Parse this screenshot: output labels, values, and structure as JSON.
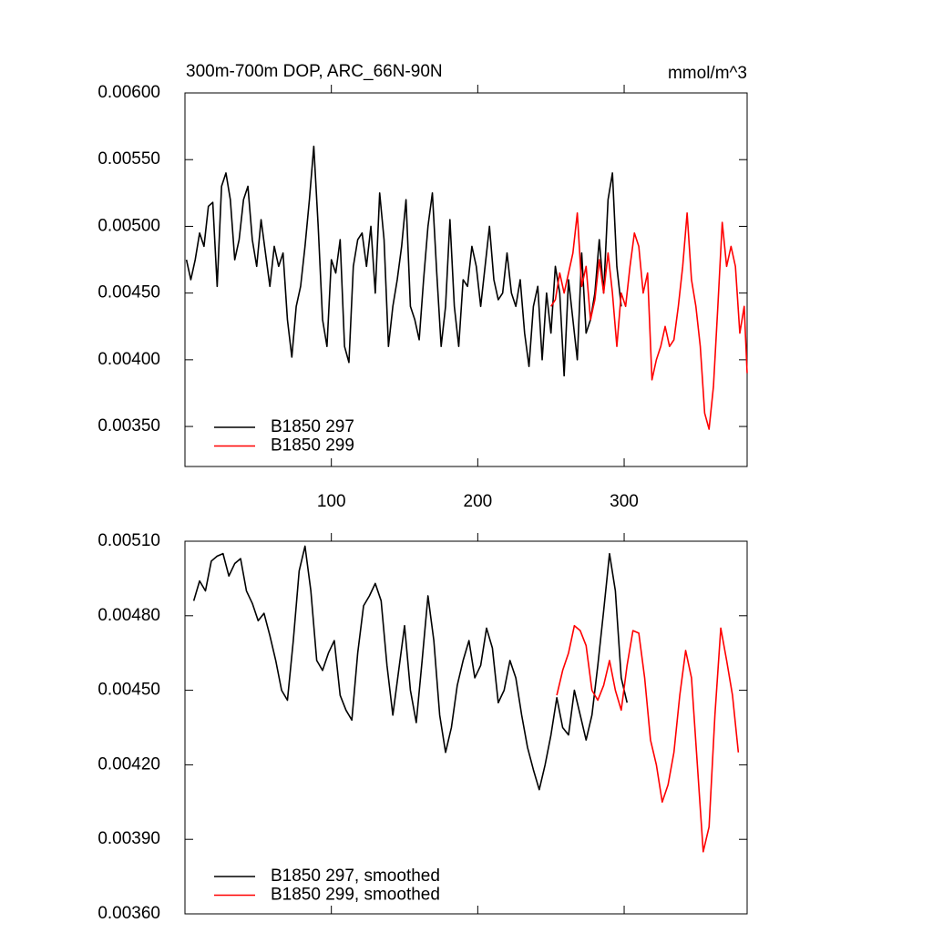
{
  "chart_data": [
    {
      "type": "line",
      "title": "300m-700m DOP, ARC_66N-90N",
      "units": "mmol/m^3",
      "xlim": [
        0,
        384
      ],
      "xticks": [
        100,
        200,
        300
      ],
      "show_xtick_labels": true,
      "ylim": [
        0.0032,
        0.006
      ],
      "yticks": [
        {
          "value": 0.0035,
          "label": "0.00350"
        },
        {
          "value": 0.004,
          "label": "0.00400"
        },
        {
          "value": 0.0045,
          "label": "0.00450"
        },
        {
          "value": 0.005,
          "label": "0.00500"
        },
        {
          "value": 0.0055,
          "label": "0.00550"
        },
        {
          "value": 0.006,
          "label": "0.00600"
        }
      ],
      "legend": "lower left",
      "series": [
        {
          "name": "B1850 297",
          "color": "#000000",
          "x": [
            1,
            4,
            7,
            10,
            13,
            16,
            19,
            22,
            25,
            28,
            31,
            34,
            37,
            40,
            43,
            46,
            49,
            52,
            55,
            58,
            61,
            64,
            67,
            70,
            73,
            76,
            79,
            82,
            85,
            88,
            91,
            94,
            97,
            100,
            103,
            106,
            109,
            112,
            115,
            118,
            121,
            124,
            127,
            130,
            133,
            136,
            139,
            142,
            145,
            148,
            151,
            154,
            157,
            160,
            163,
            166,
            169,
            172,
            175,
            178,
            181,
            184,
            187,
            190,
            193,
            196,
            199,
            202,
            205,
            208,
            211,
            214,
            217,
            220,
            223,
            226,
            229,
            232,
            235,
            238,
            241,
            244,
            247,
            250,
            253,
            256,
            259,
            262,
            265,
            268,
            271,
            274,
            277,
            280,
            283,
            286,
            289,
            292,
            295,
            298
          ],
          "values": [
            0.00475,
            0.0046,
            0.00475,
            0.00495,
            0.00485,
            0.00515,
            0.00518,
            0.00455,
            0.0053,
            0.0054,
            0.0052,
            0.00475,
            0.0049,
            0.0052,
            0.0053,
            0.0049,
            0.0047,
            0.00505,
            0.0048,
            0.00455,
            0.00485,
            0.0047,
            0.0048,
            0.0043,
            0.00402,
            0.0044,
            0.00455,
            0.00485,
            0.0052,
            0.0056,
            0.005,
            0.0043,
            0.0041,
            0.00475,
            0.00465,
            0.0049,
            0.0041,
            0.00398,
            0.0047,
            0.0049,
            0.00495,
            0.0047,
            0.005,
            0.0045,
            0.00525,
            0.0049,
            0.0041,
            0.0044,
            0.0046,
            0.00485,
            0.0052,
            0.0044,
            0.0043,
            0.00415,
            0.0046,
            0.005,
            0.00525,
            0.00465,
            0.0041,
            0.0044,
            0.00505,
            0.0044,
            0.0041,
            0.0046,
            0.00455,
            0.00485,
            0.0047,
            0.0044,
            0.0047,
            0.005,
            0.0046,
            0.00445,
            0.0045,
            0.0048,
            0.0045,
            0.0044,
            0.0046,
            0.0042,
            0.00395,
            0.0044,
            0.00455,
            0.004,
            0.0045,
            0.0042,
            0.0047,
            0.0045,
            0.00388,
            0.0046,
            0.0043,
            0.004,
            0.0048,
            0.0042,
            0.0043,
            0.0045,
            0.0049,
            0.0045,
            0.0052,
            0.0054,
            0.0047,
            0.0044
          ]
        },
        {
          "name": "B1850 299",
          "color": "#ff0000",
          "x": [
            250,
            253,
            256,
            259,
            262,
            265,
            268,
            271,
            274,
            277,
            280,
            283,
            286,
            289,
            292,
            295,
            298,
            301,
            304,
            307,
            310,
            313,
            316,
            319,
            322,
            325,
            328,
            331,
            334,
            337,
            340,
            343,
            346,
            349,
            352,
            355,
            358,
            361,
            364,
            367,
            370,
            373,
            376,
            379,
            382,
            384
          ],
          "values": [
            0.0044,
            0.00445,
            0.00465,
            0.0045,
            0.00465,
            0.0048,
            0.0051,
            0.00455,
            0.0047,
            0.0043,
            0.00445,
            0.00475,
            0.0045,
            0.0048,
            0.0045,
            0.0041,
            0.0045,
            0.0044,
            0.0047,
            0.00495,
            0.00485,
            0.0045,
            0.00465,
            0.00385,
            0.004,
            0.0041,
            0.00425,
            0.0041,
            0.00415,
            0.0044,
            0.0047,
            0.0051,
            0.0046,
            0.0044,
            0.0041,
            0.0036,
            0.00348,
            0.0038,
            0.0044,
            0.00503,
            0.0047,
            0.00485,
            0.0047,
            0.0042,
            0.0044,
            0.0039
          ]
        }
      ]
    },
    {
      "type": "line",
      "xlim": [
        0,
        384
      ],
      "xticks": [
        100,
        200,
        300
      ],
      "show_xtick_labels": false,
      "ylim": [
        0.0036,
        0.0051
      ],
      "yticks": [
        {
          "value": 0.0036,
          "label": "0.00360"
        },
        {
          "value": 0.0039,
          "label": "0.00390"
        },
        {
          "value": 0.0042,
          "label": "0.00420"
        },
        {
          "value": 0.0045,
          "label": "0.00450"
        },
        {
          "value": 0.0048,
          "label": "0.00480"
        },
        {
          "value": 0.0051,
          "label": "0.00510"
        }
      ],
      "legend": "lower left",
      "series": [
        {
          "name": "B1850 297, smoothed",
          "color": "#000000",
          "x": [
            6,
            10,
            14,
            18,
            22,
            26,
            30,
            34,
            38,
            42,
            46,
            50,
            54,
            58,
            62,
            66,
            70,
            74,
            78,
            82,
            86,
            90,
            94,
            98,
            102,
            106,
            110,
            114,
            118,
            122,
            126,
            130,
            134,
            138,
            142,
            146,
            150,
            154,
            158,
            162,
            166,
            170,
            174,
            178,
            182,
            186,
            190,
            194,
            198,
            202,
            206,
            210,
            214,
            218,
            222,
            226,
            230,
            234,
            238,
            242,
            246,
            250,
            254,
            258,
            262,
            266,
            270,
            274,
            278,
            282,
            286,
            290,
            294,
            298,
            302
          ],
          "values": [
            0.00486,
            0.00494,
            0.0049,
            0.00502,
            0.00504,
            0.00505,
            0.00496,
            0.00501,
            0.00503,
            0.0049,
            0.00485,
            0.00478,
            0.00481,
            0.00472,
            0.00462,
            0.0045,
            0.00446,
            0.0047,
            0.00498,
            0.00508,
            0.0049,
            0.00462,
            0.00458,
            0.00465,
            0.0047,
            0.00448,
            0.00442,
            0.00438,
            0.00465,
            0.00484,
            0.00488,
            0.00493,
            0.00486,
            0.0046,
            0.0044,
            0.00458,
            0.00476,
            0.0045,
            0.00437,
            0.00462,
            0.00488,
            0.0047,
            0.0044,
            0.00425,
            0.00435,
            0.00452,
            0.00462,
            0.0047,
            0.00455,
            0.0046,
            0.00475,
            0.00467,
            0.00445,
            0.0045,
            0.00462,
            0.00455,
            0.0044,
            0.00427,
            0.00418,
            0.0041,
            0.0042,
            0.00432,
            0.00447,
            0.00435,
            0.00432,
            0.0045,
            0.0044,
            0.0043,
            0.0044,
            0.0046,
            0.00482,
            0.00505,
            0.0049,
            0.00455,
            0.00445
          ]
        },
        {
          "name": "B1850 299, smoothed",
          "color": "#ff0000",
          "x": [
            254,
            258,
            262,
            266,
            270,
            274,
            278,
            282,
            286,
            290,
            294,
            298,
            302,
            306,
            310,
            314,
            318,
            322,
            326,
            330,
            334,
            338,
            342,
            346,
            350,
            354,
            358,
            362,
            366,
            370,
            374,
            378
          ],
          "values": [
            0.00448,
            0.00458,
            0.00465,
            0.00476,
            0.00474,
            0.00468,
            0.0045,
            0.00446,
            0.00452,
            0.00462,
            0.0045,
            0.00442,
            0.0046,
            0.00474,
            0.00473,
            0.00455,
            0.0043,
            0.0042,
            0.00405,
            0.00412,
            0.00425,
            0.00448,
            0.00466,
            0.00455,
            0.0042,
            0.00385,
            0.00395,
            0.0044,
            0.00475,
            0.00462,
            0.00448,
            0.00425
          ]
        }
      ]
    }
  ]
}
